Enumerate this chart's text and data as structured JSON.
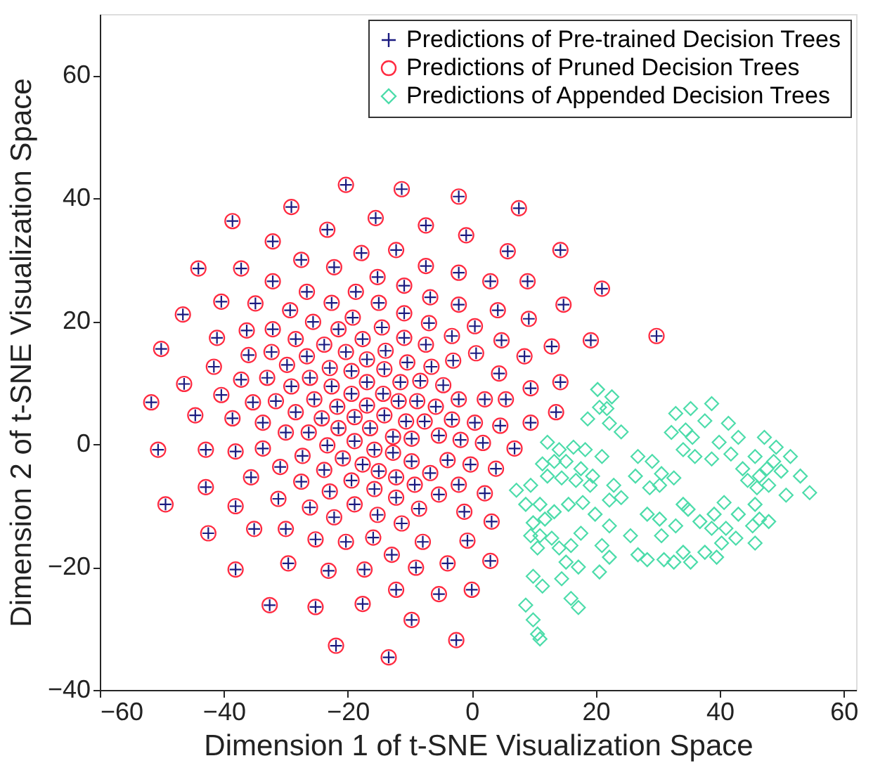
{
  "chart_data": {
    "type": "scatter",
    "xlabel": "Dimension 1 of t-SNE Visualization Space",
    "ylabel": "Dimension 2 of t-SNE Visualization Space",
    "xlim": [
      -60,
      62
    ],
    "ylim": [
      -40,
      70
    ],
    "xticks": [
      -60,
      -40,
      -20,
      0,
      20,
      40,
      60
    ],
    "yticks": [
      -40,
      -20,
      0,
      20,
      40,
      60
    ],
    "grid": false,
    "legend": "top right",
    "series": [
      {
        "name": "Predictions of Pre-trained Decision Trees",
        "color": "#1a1a80",
        "marker": "cross",
        "x": [
          -20.3,
          -29.1,
          -38.6,
          -23.3,
          -32.1,
          -44.1,
          -37.2,
          -27.5,
          -22.2,
          -32.1,
          -26.6,
          -40.4,
          -34.9,
          -46.6,
          -29.3,
          -25.6,
          -22.6,
          -19.2,
          -41.1,
          -36.3,
          -32.1,
          -28.4,
          -23.8,
          -21.5,
          -20.3,
          -50.1,
          -41.6,
          -36.0,
          -32.3,
          -29.8,
          -26.6,
          -22.9,
          -46.4,
          -40.4,
          -37.2,
          -33.0,
          -29.1,
          -26.1,
          -22.6,
          -51.7,
          -35.3,
          -31.6,
          -25.4,
          -21.7,
          -44.6,
          -38.6,
          -11.3,
          -2.1,
          7.6,
          -15.5,
          -7.4,
          -0.9,
          -17.8,
          -12.2,
          5.8,
          14.3,
          -15.2,
          -7.4,
          -2.1,
          3.0,
          9.0,
          -18.7,
          -10.9,
          -6.7,
          -2.1,
          4.2,
          9.2,
          14.8,
          -15.0,
          -10.9,
          -6.9,
          -3.2,
          0.5,
          4.8,
          8.5,
          12.9,
          19.2,
          -14.5,
          -17.6,
          -10.9,
          -7.4,
          -13.9,
          -16.9,
          -10.4,
          -6.5,
          -3.0,
          0.7,
          4.4,
          9.5,
          14.3,
          -19.4,
          -14.1,
          -11.5,
          -8.3,
          -4.6,
          -2.1,
          2.1,
          5.5,
          13.6,
          -16.9,
          -14.3,
          -19.4,
          -11.8,
          -8.8,
          -5.8,
          -16.9,
          -33.7,
          -28.4,
          -24.2,
          -21.5,
          -30.0,
          -26.3,
          -50.6,
          -42.9,
          -38.1,
          -33.7,
          -27.3,
          -23.3,
          -20.8,
          -30.9,
          -23.8,
          -35.6,
          -27.5,
          -22.9,
          -42.9,
          -49.4,
          -38.1,
          -31.2,
          -26.1,
          -22.2,
          -42.5,
          -35.1,
          -30.0,
          -25.2,
          -20.3,
          -38.1,
          -29.6,
          -23.1,
          -32.6,
          -25.2,
          -21.9,
          -18.9,
          -16.4,
          -14.1,
          -10.6,
          -7.6,
          -3.2,
          0.5,
          4.6,
          9.5,
          -18.9,
          -15.7,
          -12.7,
          -9.7,
          -5.3,
          -1.8,
          1.8,
          6.9,
          -17.6,
          -12.7,
          -9.7,
          -6.7,
          -3.9,
          -0.2,
          3.9,
          -19.4,
          -15.0,
          -12.2,
          -9.2,
          -2.1,
          2.1,
          -18.9,
          -15.7,
          -12.2,
          -8.5,
          -5.3,
          -1.2,
          3.2,
          -15.2,
          -11.3,
          -15.9,
          -12.9,
          -7.9,
          -3.9,
          -0.7,
          3.0,
          -17.3,
          -9.0,
          -12.2,
          -5.3,
          0,
          -17.6,
          -9.7,
          -13.4,
          -2.5,
          21.0,
          29.8
        ],
        "values": [
          42.2,
          38.6,
          36.3,
          34.9,
          33.0,
          28.6,
          28.6,
          30.0,
          28.8,
          26.5,
          24.8,
          23.2,
          22.9,
          21.1,
          21.8,
          19.9,
          23.0,
          20.6,
          17.3,
          18.5,
          18.7,
          17.1,
          16.2,
          18.7,
          15.0,
          15.5,
          12.6,
          14.5,
          15.0,
          12.9,
          14.3,
          12.4,
          9.8,
          8.0,
          10.5,
          10.8,
          9.4,
          10.8,
          9.4,
          6.8,
          6.8,
          7.0,
          7.3,
          6.1,
          4.7,
          4.2,
          41.5,
          40.3,
          38.4,
          36.8,
          35.6,
          34.0,
          31.1,
          31.6,
          31.4,
          31.6,
          27.2,
          29.0,
          27.9,
          26.5,
          26.5,
          24.8,
          25.8,
          23.9,
          22.7,
          21.8,
          20.4,
          22.7,
          23.0,
          21.3,
          19.7,
          17.6,
          19.2,
          16.9,
          14.3,
          15.9,
          16.9,
          19.0,
          17.1,
          17.3,
          16.2,
          15.2,
          13.8,
          13.3,
          12.6,
          13.6,
          14.8,
          11.5,
          9.1,
          10.1,
          11.9,
          12.2,
          10.1,
          10.3,
          9.6,
          7.3,
          7.3,
          7.3,
          5.2,
          10.1,
          8.2,
          8.2,
          7.0,
          7.0,
          6.1,
          6.3,
          3.5,
          5.2,
          4.2,
          2.6,
          1.9,
          1.9,
          -0.9,
          -0.9,
          -1.2,
          -0.7,
          -1.9,
          -0.2,
          -2.3,
          -3.7,
          -4.2,
          -5.4,
          -6.1,
          -7.7,
          -7.0,
          -9.8,
          -10.1,
          -8.9,
          -10.3,
          -11.9,
          -14.5,
          -13.8,
          -13.8,
          -15.5,
          -15.9,
          -20.4,
          -19.4,
          -20.6,
          -26.2,
          -26.5,
          -32.8,
          4.4,
          2.6,
          4.7,
          3.7,
          3.7,
          4.0,
          3.5,
          3.0,
          3.5,
          0.5,
          -0.9,
          1.2,
          0.9,
          1.4,
          0.7,
          0.2,
          -0.7,
          -3.3,
          -1.4,
          -2.8,
          -4.7,
          -2.6,
          -3.3,
          -4.0,
          -5.9,
          -4.4,
          -5.4,
          -6.6,
          -6.6,
          -8.0,
          -9.8,
          -7.3,
          -8.7,
          -10.5,
          -8.2,
          -11.0,
          -12.6,
          -11.5,
          -12.9,
          -15.2,
          -18.0,
          -15.9,
          -19.4,
          -15.7,
          -19.0,
          -20.4,
          -20.1,
          -23.7,
          -24.4,
          -23.7,
          -26.0,
          -28.6,
          -34.7,
          -31.9,
          25.3,
          17.6
        ]
      },
      {
        "name": "Predictions of Pruned Decision Trees",
        "color": "#ff2a40",
        "marker": "circle",
        "x": [
          -20.3,
          -29.1,
          -38.6,
          -23.3,
          -32.1,
          -44.1,
          -37.2,
          -27.5,
          -22.2,
          -32.1,
          -26.6,
          -40.4,
          -34.9,
          -46.6,
          -29.3,
          -25.6,
          -22.6,
          -19.2,
          -41.1,
          -36.3,
          -32.1,
          -28.4,
          -23.8,
          -21.5,
          -20.3,
          -50.1,
          -41.6,
          -36.0,
          -32.3,
          -29.8,
          -26.6,
          -22.9,
          -46.4,
          -40.4,
          -37.2,
          -33.0,
          -29.1,
          -26.1,
          -22.6,
          -51.7,
          -35.3,
          -31.6,
          -25.4,
          -21.7,
          -44.6,
          -38.6,
          -11.3,
          -2.1,
          7.6,
          -15.5,
          -7.4,
          -0.9,
          -17.8,
          -12.2,
          5.8,
          14.3,
          -15.2,
          -7.4,
          -2.1,
          3.0,
          9.0,
          -18.7,
          -10.9,
          -6.7,
          -2.1,
          4.2,
          9.2,
          14.8,
          -15.0,
          -10.9,
          -6.9,
          -3.2,
          0.5,
          4.8,
          8.5,
          12.9,
          19.2,
          -14.5,
          -17.6,
          -10.9,
          -7.4,
          -13.9,
          -16.9,
          -10.4,
          -6.5,
          -3.0,
          0.7,
          4.4,
          9.5,
          14.3,
          -19.4,
          -14.1,
          -11.5,
          -8.3,
          -4.6,
          -2.1,
          2.1,
          5.5,
          13.6,
          -16.9,
          -14.3,
          -19.4,
          -11.8,
          -8.8,
          -5.8,
          -16.9,
          -33.7,
          -28.4,
          -24.2,
          -21.5,
          -30.0,
          -26.3,
          -50.6,
          -42.9,
          -38.1,
          -33.7,
          -27.3,
          -23.3,
          -20.8,
          -30.9,
          -23.8,
          -35.6,
          -27.5,
          -22.9,
          -42.9,
          -49.4,
          -38.1,
          -31.2,
          -26.1,
          -22.2,
          -42.5,
          -35.1,
          -30.0,
          -25.2,
          -20.3,
          -38.1,
          -29.6,
          -23.1,
          -32.6,
          -25.2,
          -21.9,
          -18.9,
          -16.4,
          -14.1,
          -10.6,
          -7.6,
          -3.2,
          0.5,
          4.6,
          9.5,
          -18.9,
          -15.7,
          -12.7,
          -9.7,
          -5.3,
          -1.8,
          1.8,
          6.9,
          -17.6,
          -12.7,
          -9.7,
          -6.7,
          -3.9,
          -0.2,
          3.9,
          -19.4,
          -15.0,
          -12.2,
          -9.2,
          -2.1,
          2.1,
          -18.9,
          -15.7,
          -12.2,
          -8.5,
          -5.3,
          -1.2,
          3.2,
          -15.2,
          -11.3,
          -15.9,
          -12.9,
          -7.9,
          -3.9,
          -0.7,
          3.0,
          -17.3,
          -9.0,
          -12.2,
          -5.3,
          0,
          -17.6,
          -9.7,
          -13.4,
          -2.5,
          21.0,
          29.8
        ],
        "values": [
          42.2,
          38.6,
          36.3,
          34.9,
          33.0,
          28.6,
          28.6,
          30.0,
          28.8,
          26.5,
          24.8,
          23.2,
          22.9,
          21.1,
          21.8,
          19.9,
          23.0,
          20.6,
          17.3,
          18.5,
          18.7,
          17.1,
          16.2,
          18.7,
          15.0,
          15.5,
          12.6,
          14.5,
          15.0,
          12.9,
          14.3,
          12.4,
          9.8,
          8.0,
          10.5,
          10.8,
          9.4,
          10.8,
          9.4,
          6.8,
          6.8,
          7.0,
          7.3,
          6.1,
          4.7,
          4.2,
          41.5,
          40.3,
          38.4,
          36.8,
          35.6,
          34.0,
          31.1,
          31.6,
          31.4,
          31.6,
          27.2,
          29.0,
          27.9,
          26.5,
          26.5,
          24.8,
          25.8,
          23.9,
          22.7,
          21.8,
          20.4,
          22.7,
          23.0,
          21.3,
          19.7,
          17.6,
          19.2,
          16.9,
          14.3,
          15.9,
          16.9,
          19.0,
          17.1,
          17.3,
          16.2,
          15.2,
          13.8,
          13.3,
          12.6,
          13.6,
          14.8,
          11.5,
          9.1,
          10.1,
          11.9,
          12.2,
          10.1,
          10.3,
          9.6,
          7.3,
          7.3,
          7.3,
          5.2,
          10.1,
          8.2,
          8.2,
          7.0,
          7.0,
          6.1,
          6.3,
          3.5,
          5.2,
          4.2,
          2.6,
          1.9,
          1.9,
          -0.9,
          -0.9,
          -1.2,
          -0.7,
          -1.9,
          -0.2,
          -2.3,
          -3.7,
          -4.2,
          -5.4,
          -6.1,
          -7.7,
          -7.0,
          -9.8,
          -10.1,
          -8.9,
          -10.3,
          -11.9,
          -14.5,
          -13.8,
          -13.8,
          -15.5,
          -15.9,
          -20.4,
          -19.4,
          -20.6,
          -26.2,
          -26.5,
          -32.8,
          4.4,
          2.6,
          4.7,
          3.7,
          3.7,
          4.0,
          3.5,
          3.0,
          3.5,
          0.5,
          -0.9,
          1.2,
          0.9,
          1.4,
          0.7,
          0.2,
          -0.7,
          -3.3,
          -1.4,
          -2.8,
          -4.7,
          -2.6,
          -3.3,
          -4.0,
          -5.9,
          -4.4,
          -5.4,
          -6.6,
          -6.6,
          -8.0,
          -9.8,
          -7.3,
          -8.7,
          -10.5,
          -8.2,
          -11.0,
          -12.6,
          -11.5,
          -12.9,
          -15.2,
          -18.0,
          -15.9,
          -19.4,
          -15.7,
          -19.0,
          -20.4,
          -20.1,
          -23.7,
          -24.4,
          -23.7,
          -26.0,
          -28.6,
          -34.7,
          -31.9,
          25.3,
          17.6
        ]
      },
      {
        "name": "Predictions of Appended Decision Trees",
        "color": "#4cdcaa",
        "marker": "diamond",
        "x": [
          20.3,
          22.6,
          21.8,
          18.7,
          22.2,
          24.1,
          20.6,
          12.2,
          14.1,
          16.4,
          18.3,
          21.0,
          11.4,
          13.3,
          15.2,
          17.6,
          19.5,
          7.2,
          9.5,
          12.2,
          14.5,
          16.8,
          19.1,
          22.9,
          24.1,
          22.2,
          8.7,
          11.0,
          13.3,
          15.6,
          17.9,
          19.9,
          22.2,
          9.9,
          11.8,
          11.0,
          12.9,
          9.5,
          10.6,
          14.1,
          16.0,
          17.6,
          21.0,
          22.2,
          15.2,
          17.2,
          20.6,
          9.9,
          11.4,
          14.5,
          16.0,
          17.2,
          8.7,
          9.9,
          10.6,
          11.0,
          26.8,
          29.1,
          30.6,
          26.4,
          28.7,
          32.6,
          30.3,
          28.3,
          30.3,
          32.9,
          34.1,
          34.9,
          25.6,
          30.6,
          26.8,
          28.3,
          31.0,
          32.6,
          35.3,
          34.1,
          32.9,
          35.3,
          38.7,
          37.6,
          34.5,
          32.2,
          35.6,
          38.7,
          36.0,
          34.1,
          41.4,
          43.0,
          39.9,
          41.8,
          43.7,
          45.7,
          47.2,
          49.1,
          51.4,
          53.0,
          54.5,
          50.7,
          47.9,
          46.0,
          44.5,
          47.6,
          49.9,
          48.7,
          46.4,
          40.7,
          39.1,
          36.8,
          38.7,
          41.0,
          42.6,
          40.3,
          39.5,
          37.6,
          43.0,
          45.7,
          46.4,
          47.9,
          45.3,
          45.7
        ],
        "values": [
          8.9,
          7.7,
          5.8,
          4.1,
          3.4,
          2.0,
          6.0,
          0.3,
          -0.9,
          -0.5,
          -0.9,
          -2.0,
          -3.2,
          -2.8,
          -2.8,
          -4.0,
          -5.2,
          -7.5,
          -6.7,
          -5.2,
          -5.5,
          -5.9,
          -6.7,
          -6.7,
          -8.7,
          -9.1,
          -9.8,
          -9.8,
          -11.0,
          -9.8,
          -9.5,
          -11.4,
          -13.3,
          -12.8,
          -12.2,
          -14.9,
          -15.3,
          -14.9,
          -16.9,
          -16.9,
          -16.5,
          -14.5,
          -16.5,
          -18.4,
          -19.2,
          -20.0,
          -20.8,
          -21.5,
          -23.1,
          -21.9,
          -25.1,
          -26.6,
          -26.2,
          -28.6,
          -30.9,
          -31.7,
          -2.0,
          -2.8,
          -4.8,
          -5.2,
          -7.1,
          -5.5,
          -6.7,
          -11.4,
          -12.2,
          -13.3,
          -9.8,
          -10.6,
          -14.9,
          -14.9,
          -18.0,
          -18.8,
          -18.8,
          -19.2,
          -19.2,
          -17.6,
          5.0,
          5.8,
          6.6,
          3.8,
          2.3,
          1.9,
          1.1,
          -2.4,
          -2.0,
          -0.9,
          3.4,
          1.1,
          0.3,
          -1.6,
          -4.0,
          -2.0,
          1.1,
          -0.5,
          -2.0,
          -5.2,
          -7.9,
          -8.3,
          -6.7,
          -7.1,
          -5.9,
          -4.0,
          -4.4,
          -2.8,
          -5.2,
          -9.5,
          -11.4,
          -12.6,
          -13.7,
          -13.7,
          -15.3,
          -16.1,
          -18.4,
          -17.6,
          -11.4,
          -9.8,
          -12.2,
          -12.6,
          -13.3,
          -16.1
        ]
      }
    ]
  }
}
